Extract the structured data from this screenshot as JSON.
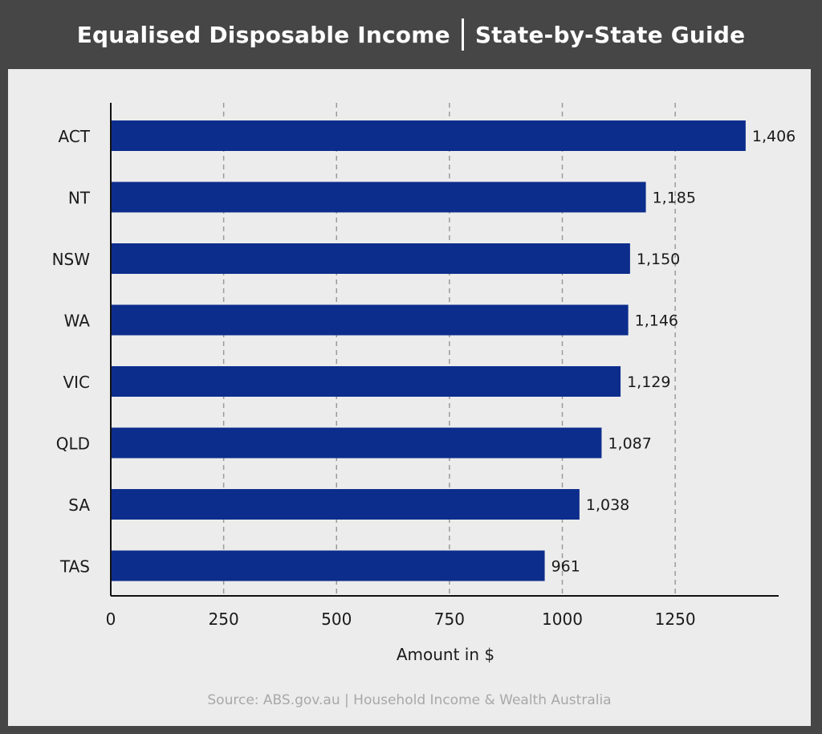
{
  "header": {
    "title_left": "Equalised Disposable Income",
    "title_right": "State-by-State Guide"
  },
  "source": "Source: ABS.gov.au | Household Income & Wealth Australia",
  "colors": {
    "background": "#464646",
    "panel": "#ececec",
    "bar": "#0c2d8c",
    "text": "#1a1a1a",
    "source_text": "#a8a8a8"
  },
  "chart_data": {
    "type": "bar",
    "orientation": "horizontal",
    "categories": [
      "ACT",
      "NT",
      "NSW",
      "WA",
      "VIC",
      "QLD",
      "SA",
      "TAS"
    ],
    "values": [
      1406,
      1185,
      1150,
      1146,
      1129,
      1087,
      1038,
      961
    ],
    "value_labels": [
      "1,406",
      "1,185",
      "1,150",
      "1,146",
      "1,129",
      "1,087",
      "1,038",
      "961"
    ],
    "xlabel": "Amount in $",
    "xlim": [
      0,
      1480
    ],
    "xticks": [
      0,
      250,
      500,
      750,
      1000,
      1250
    ],
    "xtick_labels": [
      "0",
      "250",
      "500",
      "750",
      "1000",
      "1250"
    ],
    "grid": "vertical-dashed",
    "legend": "none"
  }
}
